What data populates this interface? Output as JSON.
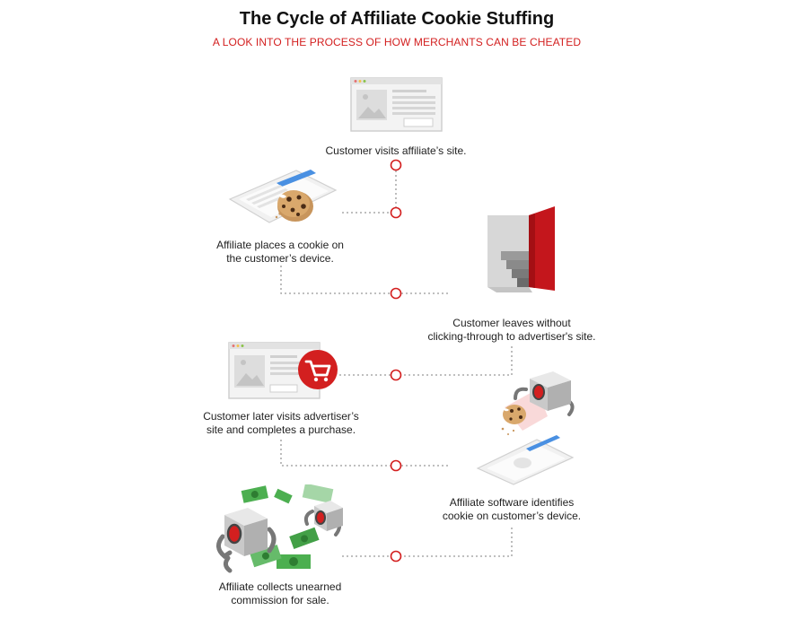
{
  "header": {
    "title": "The Cycle of Affiliate Cookie Stuffing",
    "subtitle": "A LOOK INTO THE PROCESS OF HOW MERCHANTS CAN BE CHEATED"
  },
  "steps": [
    {
      "text": "Customer visits affiliate’s site.",
      "icon": "browser-window-icon"
    },
    {
      "text": "Affiliate places a cookie on\nthe customer’s device.",
      "icon": "cookie-on-tablet-icon"
    },
    {
      "text": "Customer leaves without\nclicking-through to advertiser's site.",
      "icon": "open-door-icon"
    },
    {
      "text": "Customer later visits advertiser’s\nsite and completes a purchase.",
      "icon": "shopping-cart-browser-icon"
    },
    {
      "text": "Affiliate software identifies\ncookie on customer’s device.",
      "icon": "robot-scanning-cookie-icon"
    },
    {
      "text": "Affiliate collects unearned\ncommission for sale.",
      "icon": "robots-with-money-icon"
    }
  ],
  "colors": {
    "accent": "#d31f1f",
    "connector": "#999999"
  }
}
